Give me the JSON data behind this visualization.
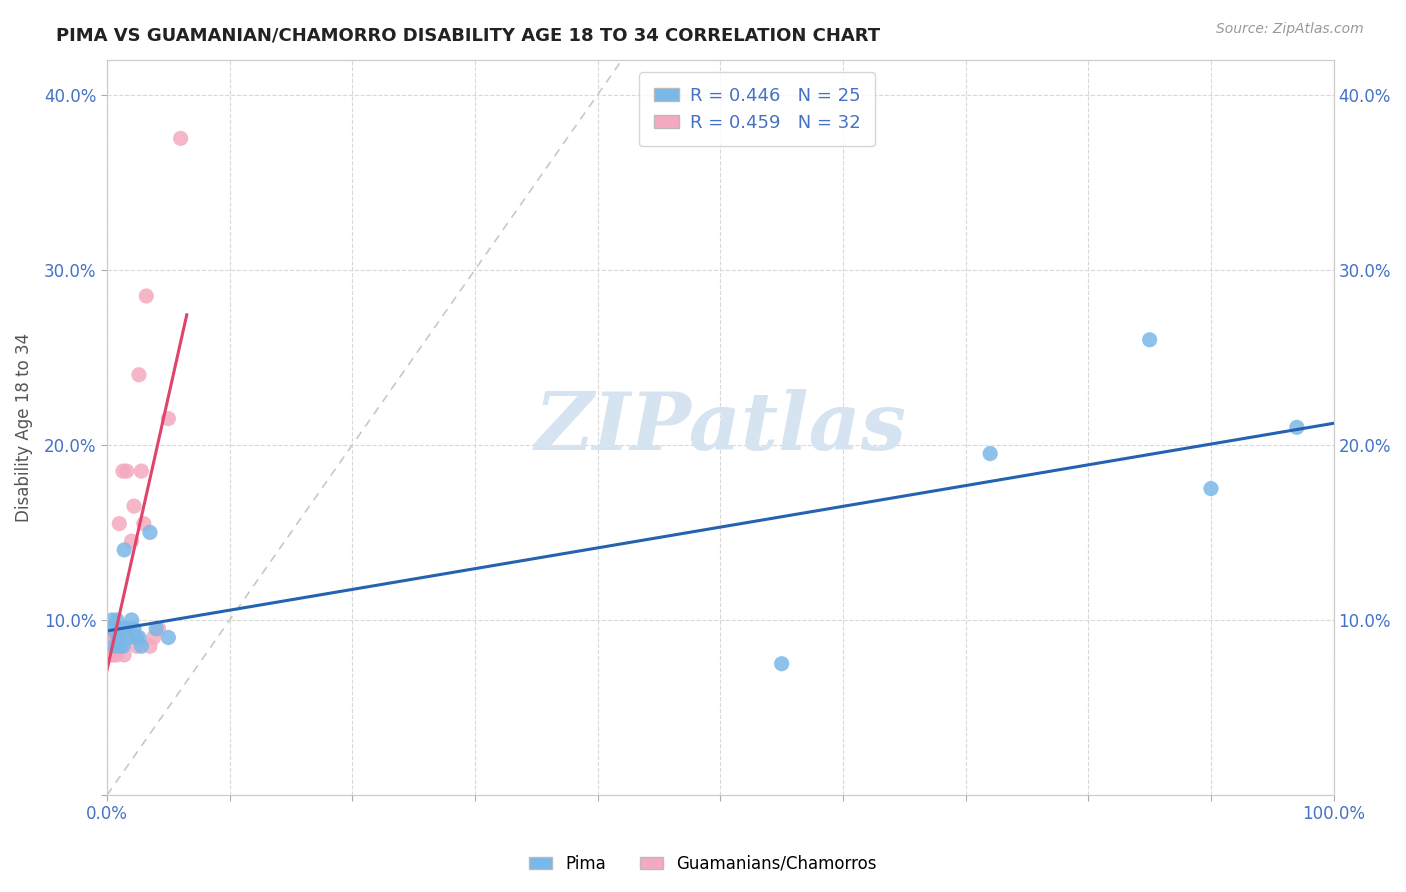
{
  "title": "PIMA VS GUAMANIAN/CHAMORRO DISABILITY AGE 18 TO 34 CORRELATION CHART",
  "source_text": "Source: ZipAtlas.com",
  "ylabel": "Disability Age 18 to 34",
  "xlim": [
    0,
    1.0
  ],
  "ylim": [
    0.0,
    0.42
  ],
  "xticks": [
    0.0,
    0.1,
    0.2,
    0.3,
    0.4,
    0.5,
    0.6,
    0.7,
    0.8,
    0.9,
    1.0
  ],
  "xtick_labels": [
    "0.0%",
    "",
    "",
    "",
    "",
    "",
    "",
    "",
    "",
    "",
    "100.0%"
  ],
  "yticks": [
    0.0,
    0.1,
    0.2,
    0.3,
    0.4
  ],
  "ytick_labels": [
    "",
    "10.0%",
    "20.0%",
    "30.0%",
    "40.0%"
  ],
  "pima_color": "#7ab8e8",
  "guam_color": "#f4a9bf",
  "pima_line_color": "#2563b0",
  "guam_line_color": "#e0446a",
  "diag_line_color": "#c8c8c8",
  "watermark_text": "ZIPatlas",
  "watermark_color": "#d5e4f0",
  "legend_R_pima": "R = 0.446",
  "legend_N_pima": "N = 25",
  "legend_R_guam": "R = 0.459",
  "legend_N_guam": "N = 32",
  "pima_x": [
    0.003,
    0.004,
    0.006,
    0.008,
    0.009,
    0.01,
    0.01,
    0.012,
    0.013,
    0.014,
    0.016,
    0.018,
    0.02,
    0.022,
    0.024,
    0.026,
    0.028,
    0.035,
    0.04,
    0.05,
    0.55,
    0.72,
    0.85,
    0.9,
    0.97
  ],
  "pima_y": [
    0.095,
    0.1,
    0.085,
    0.1,
    0.09,
    0.09,
    0.085,
    0.095,
    0.085,
    0.14,
    0.095,
    0.09,
    0.1,
    0.095,
    0.09,
    0.09,
    0.085,
    0.15,
    0.095,
    0.09,
    0.075,
    0.195,
    0.26,
    0.175,
    0.21
  ],
  "guam_x": [
    0.002,
    0.002,
    0.003,
    0.004,
    0.005,
    0.006,
    0.007,
    0.008,
    0.008,
    0.009,
    0.01,
    0.01,
    0.011,
    0.012,
    0.013,
    0.014,
    0.015,
    0.016,
    0.017,
    0.018,
    0.02,
    0.022,
    0.024,
    0.026,
    0.028,
    0.03,
    0.032,
    0.035,
    0.038,
    0.042,
    0.05,
    0.06
  ],
  "guam_y": [
    0.095,
    0.08,
    0.095,
    0.09,
    0.08,
    0.09,
    0.09,
    0.085,
    0.08,
    0.09,
    0.095,
    0.155,
    0.09,
    0.085,
    0.185,
    0.08,
    0.095,
    0.185,
    0.09,
    0.095,
    0.145,
    0.165,
    0.085,
    0.24,
    0.185,
    0.155,
    0.285,
    0.085,
    0.09,
    0.095,
    0.215,
    0.375
  ],
  "background_color": "#ffffff",
  "plot_bg_color": "#ffffff",
  "grid_color": "#d8d8d8",
  "grid_style": "--"
}
